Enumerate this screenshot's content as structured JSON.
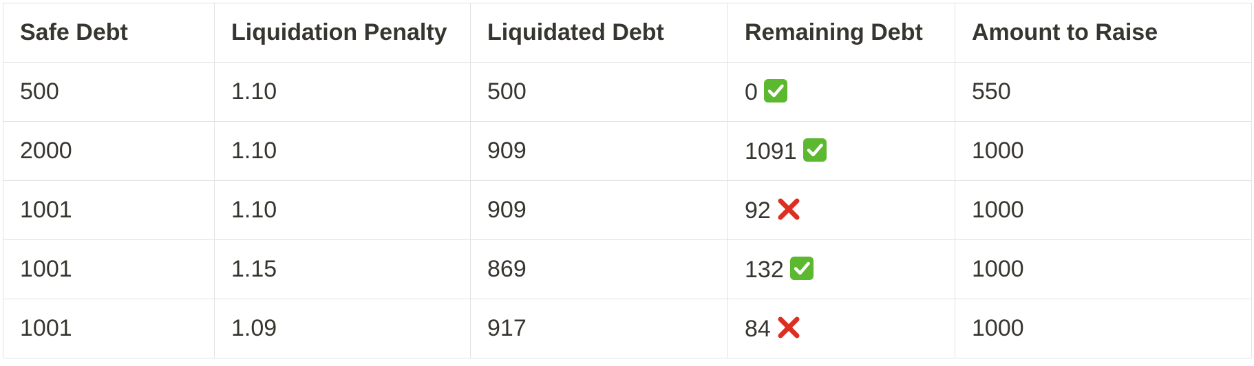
{
  "table": {
    "headers": [
      "Safe Debt",
      "Liquidation Penalty",
      "Liquidated Debt",
      "Remaining Debt",
      "Amount to Raise"
    ],
    "rows": [
      {
        "safe_debt": "500",
        "liquidation_penalty": "1.10",
        "liquidated_debt": "500",
        "remaining_debt": "0",
        "status_icon": "check-mark-icon",
        "amount_to_raise": "550"
      },
      {
        "safe_debt": "2000",
        "liquidation_penalty": "1.10",
        "liquidated_debt": "909",
        "remaining_debt": "1091",
        "status_icon": "check-mark-icon",
        "amount_to_raise": "1000"
      },
      {
        "safe_debt": "1001",
        "liquidation_penalty": "1.10",
        "liquidated_debt": "909",
        "remaining_debt": "92",
        "status_icon": "cross-mark-icon",
        "amount_to_raise": "1000"
      },
      {
        "safe_debt": "1001",
        "liquidation_penalty": "1.15",
        "liquidated_debt": "869",
        "remaining_debt": "132",
        "status_icon": "check-mark-icon",
        "amount_to_raise": "1000"
      },
      {
        "safe_debt": "1001",
        "liquidation_penalty": "1.09",
        "liquidated_debt": "917",
        "remaining_debt": "84",
        "status_icon": "cross-mark-icon",
        "amount_to_raise": "1000"
      }
    ]
  },
  "colors": {
    "text": "#37352f",
    "border": "#e3e2e0",
    "check_green": "#5cb82f",
    "cross_red": "#dd2e22"
  }
}
